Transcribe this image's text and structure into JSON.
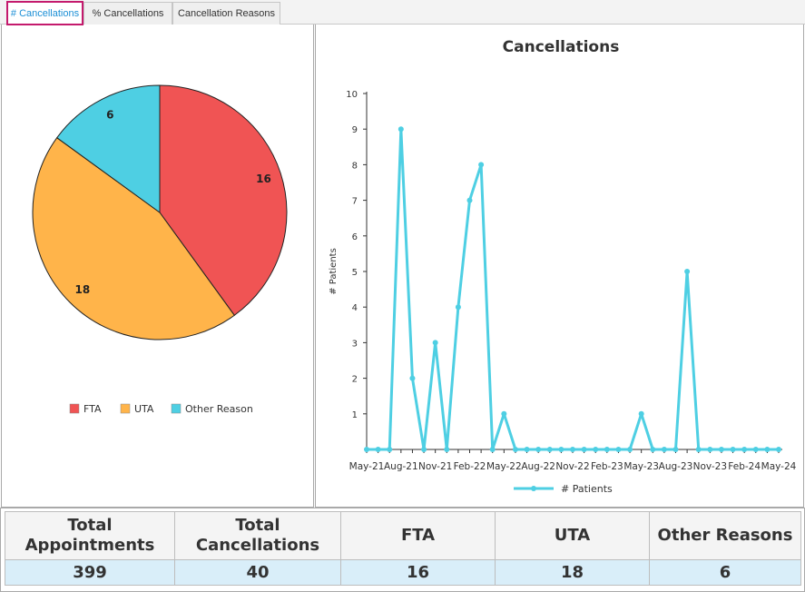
{
  "tabs": [
    {
      "label": "# Cancellations",
      "active": true
    },
    {
      "label": "% Cancellations",
      "active": false
    },
    {
      "label": "Cancellation Reasons",
      "active": false
    }
  ],
  "pie": {
    "legend": [
      {
        "label": "FTA",
        "color": "#f05454"
      },
      {
        "label": "UTA",
        "color": "#ffb44a"
      },
      {
        "label": "Other Reason",
        "color": "#4ecfe3"
      }
    ]
  },
  "line": {
    "title": "Cancellations",
    "ylabel": "# Patients",
    "series_name": "# Patients",
    "color": "#4ecfe3"
  },
  "chart_data": [
    {
      "type": "pie",
      "slices": [
        {
          "label": "FTA",
          "value": 16
        },
        {
          "label": "UTA",
          "value": 18
        },
        {
          "label": "Other Reason",
          "value": 6
        }
      ]
    },
    {
      "type": "line",
      "title": "Cancellations",
      "ylabel": "# Patients",
      "ylim": [
        0,
        10
      ],
      "yticks": [
        1,
        2,
        3,
        4,
        5,
        6,
        7,
        8,
        9,
        10
      ],
      "x": [
        "May-21",
        "Jun-21",
        "Jul-21",
        "Aug-21",
        "Sep-21",
        "Oct-21",
        "Nov-21",
        "Dec-21",
        "Jan-22",
        "Feb-22",
        "Mar-22",
        "Apr-22",
        "May-22",
        "Jun-22",
        "Jul-22",
        "Aug-22",
        "Sep-22",
        "Oct-22",
        "Nov-22",
        "Dec-22",
        "Jan-23",
        "Feb-23",
        "Mar-23",
        "Apr-23",
        "May-23",
        "Jun-23",
        "Jul-23",
        "Aug-23",
        "Sep-23",
        "Oct-23",
        "Nov-23",
        "Dec-23",
        "Jan-24",
        "Feb-24",
        "Mar-24",
        "Apr-24",
        "May-24"
      ],
      "x_tick_labels": [
        "May-21",
        "Aug-21",
        "Nov-21",
        "Feb-22",
        "May-22",
        "Aug-22",
        "Nov-22",
        "Feb-23",
        "May-23",
        "Aug-23",
        "Nov-23",
        "Feb-24",
        "May-24"
      ],
      "series": [
        {
          "name": "# Patients",
          "values": [
            0,
            0,
            0,
            9,
            2,
            0,
            3,
            0,
            4,
            7,
            8,
            0,
            1,
            0,
            0,
            0,
            0,
            0,
            0,
            0,
            0,
            0,
            0,
            0,
            1,
            0,
            0,
            0,
            5,
            0,
            0,
            0,
            0,
            0,
            0,
            0,
            0
          ]
        }
      ],
      "legend": "bottom"
    }
  ],
  "summary": {
    "headers": [
      "Total\nAppointments",
      "Total\nCancellations",
      "FTA",
      "UTA",
      "Other Reasons"
    ],
    "values": [
      "399",
      "40",
      "16",
      "18",
      "6"
    ]
  }
}
